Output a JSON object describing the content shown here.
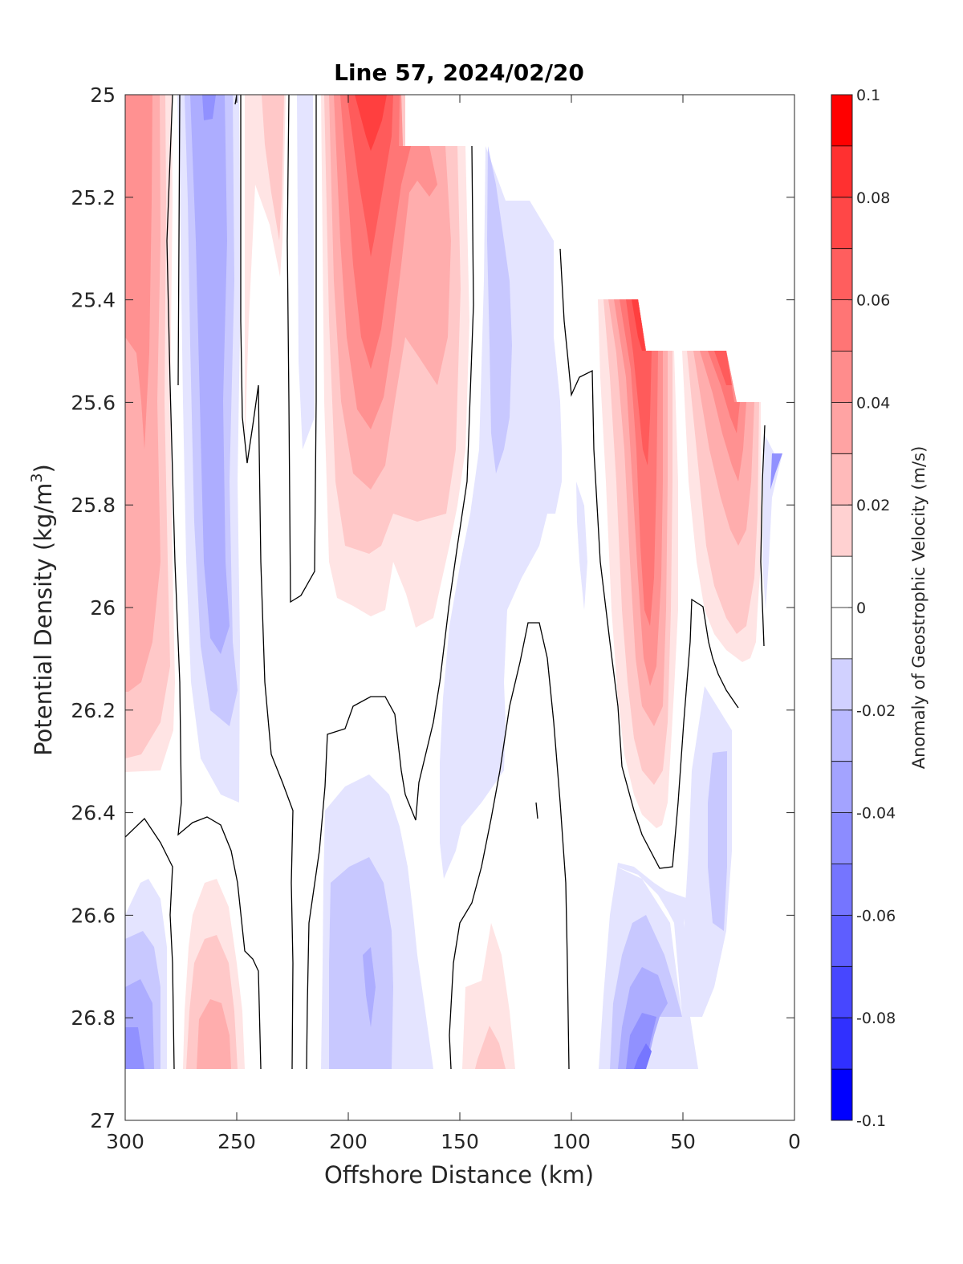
{
  "chart_data": {
    "type": "heatmap",
    "subtype": "filled-contour",
    "title": "Line 57, 2024/02/20",
    "xlabel": "Offshore Distance (km)",
    "ylabel_main": "Potential Density (kg/m",
    "ylabel_sup": "3",
    "ylabel_end": ")",
    "colorbar_label": "Anomaly of Geostrophic Velocity (m/s)",
    "xlim": [
      300,
      0
    ],
    "x_reversed": true,
    "ylim": [
      25,
      27
    ],
    "y_reversed": true,
    "x_ticks": [
      "300",
      "250",
      "200",
      "150",
      "100",
      "50",
      "0"
    ],
    "x_tick_values": [
      300,
      250,
      200,
      150,
      100,
      50,
      0
    ],
    "y_ticks": [
      "25",
      "25.2",
      "25.4",
      "25.6",
      "25.8",
      "26",
      "26.2",
      "26.4",
      "26.6",
      "26.8",
      "27"
    ],
    "y_tick_values": [
      25,
      25.2,
      25.4,
      25.6,
      25.8,
      26,
      26.2,
      26.4,
      26.6,
      26.8,
      27
    ],
    "colorbar_ticks": [
      "0.1",
      "0.08",
      "0.06",
      "0.04",
      "0.02",
      "0",
      "-0.02",
      "-0.04",
      "-0.06",
      "-0.08",
      "-0.1"
    ],
    "colorbar_tick_values": [
      0.1,
      0.08,
      0.06,
      0.04,
      0.02,
      0,
      -0.02,
      -0.04,
      -0.06,
      -0.08,
      -0.1
    ],
    "clim": [
      -0.1,
      0.1
    ],
    "level_step": 0.01,
    "colormap": "blue-white-red",
    "grid": false,
    "zero_contour_color": "#000000",
    "features": [
      {
        "x": [
          295,
          282
        ],
        "y": [
          25.0,
          26.3
        ],
        "value": 0.04
      },
      {
        "x": [
          272,
          250
        ],
        "y": [
          25.0,
          26.35
        ],
        "value": -0.035
      },
      {
        "x": [
          231,
          225
        ],
        "y": [
          25.0,
          25.5
        ],
        "value": 0.012
      },
      {
        "x": [
          210,
          165
        ],
        "y": [
          25.0,
          25.9
        ],
        "value": 0.09
      },
      {
        "x": [
          175,
          150
        ],
        "y": [
          25.1,
          26.0
        ],
        "value": 0.03
      },
      {
        "x": [
          150,
          120
        ],
        "y": [
          25.1,
          26.6
        ],
        "value": -0.02
      },
      {
        "x": [
          85,
          57
        ],
        "y": [
          25.4,
          26.4
        ],
        "value": 0.1
      },
      {
        "x": [
          50,
          25
        ],
        "y": [
          25.5,
          26.1
        ],
        "value": 0.07
      },
      {
        "x": [
          42,
          30
        ],
        "y": [
          26.2,
          26.7
        ],
        "value": -0.02
      },
      {
        "x": [
          300,
          280
        ],
        "y": [
          26.5,
          26.9
        ],
        "value": -0.035
      },
      {
        "x": [
          270,
          245
        ],
        "y": [
          26.55,
          26.9
        ],
        "value": 0.04
      },
      {
        "x": [
          205,
          170
        ],
        "y": [
          26.4,
          26.9
        ],
        "value": -0.03
      },
      {
        "x": [
          140,
          120
        ],
        "y": [
          26.65,
          26.9
        ],
        "value": 0.02
      },
      {
        "x": [
          88,
          55
        ],
        "y": [
          26.5,
          26.9
        ],
        "value": -0.06
      }
    ]
  }
}
